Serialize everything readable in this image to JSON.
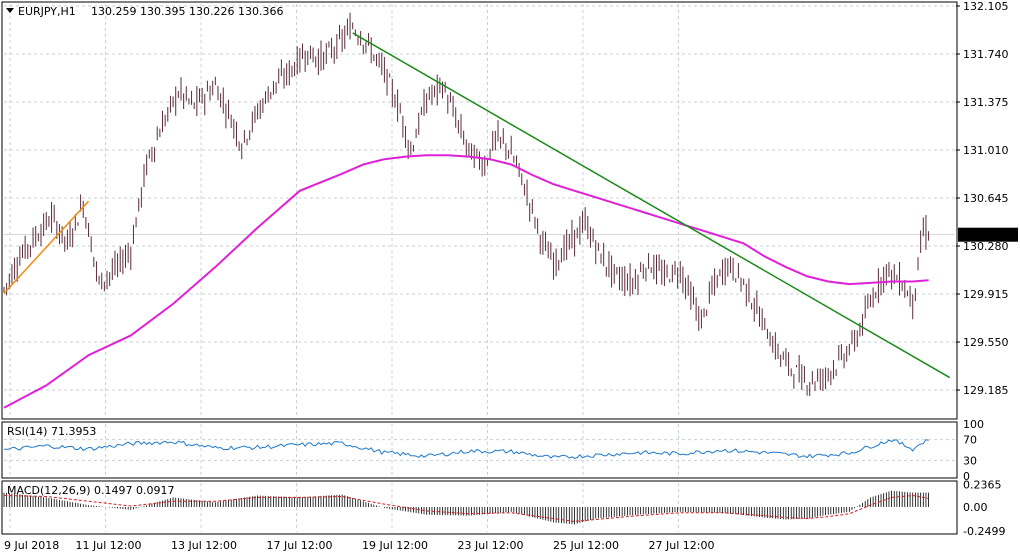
{
  "header": {
    "symbol": "EURJPY,H1",
    "ohlc": "130.259 130.395 130.226 130.366"
  },
  "colors": {
    "candles": "#5a2b3a",
    "ma_line": "#e020d8",
    "trend_down": "#1a8a1a",
    "trend_up": "#f08a10",
    "rsi": "#1e78c8",
    "macd_signal": "#d02020",
    "price_tag_bg": "#000000",
    "price_tag_fg": "#ffffff",
    "grid": "#c8d0d8"
  },
  "chart_data": [
    {
      "type": "candlestick",
      "title": "EURJPY,H1",
      "ylim": [
        128.98,
        132.12
      ],
      "ticks_y": [
        "132.105",
        "131.740",
        "131.375",
        "131.010",
        "130.645",
        "130.280",
        "129.915",
        "129.550",
        "129.185"
      ],
      "ticks_x": [
        "9 Jul 2018",
        "11 Jul 12:00",
        "13 Jul 12:00",
        "17 Jul 12:00",
        "19 Jul 12:00",
        "23 Jul 12:00",
        "25 Jul 12:00",
        "27 Jul 12:00"
      ],
      "current_price": "130.366",
      "price_path": [
        [
          0,
          129.95
        ],
        [
          3,
          130.2
        ],
        [
          6,
          130.35
        ],
        [
          9,
          130.5
        ],
        [
          12,
          130.3
        ],
        [
          15,
          130.6
        ],
        [
          18,
          130.0
        ],
        [
          21,
          130.1
        ],
        [
          24,
          130.25
        ],
        [
          27,
          130.9
        ],
        [
          30,
          131.2
        ],
        [
          33,
          131.45
        ],
        [
          36,
          131.35
        ],
        [
          40,
          131.5
        ],
        [
          43,
          131.25
        ],
        [
          45,
          131.05
        ],
        [
          48,
          131.3
        ],
        [
          51,
          131.5
        ],
        [
          54,
          131.6
        ],
        [
          57,
          131.75
        ],
        [
          60,
          131.7
        ],
        [
          63,
          131.8
        ],
        [
          66,
          131.95
        ],
        [
          69,
          131.8
        ],
        [
          72,
          131.6
        ],
        [
          75,
          131.3
        ],
        [
          77,
          131.0
        ],
        [
          80,
          131.4
        ],
        [
          83,
          131.5
        ],
        [
          86,
          131.2
        ],
        [
          88,
          131.0
        ],
        [
          91,
          130.9
        ],
        [
          93,
          131.1
        ],
        [
          95,
          131.05
        ],
        [
          97,
          130.9
        ],
        [
          100,
          130.55
        ],
        [
          102,
          130.3
        ],
        [
          104,
          130.15
        ],
        [
          107,
          130.3
        ],
        [
          110,
          130.45
        ],
        [
          113,
          130.2
        ],
        [
          116,
          130.05
        ],
        [
          119,
          130.0
        ],
        [
          122,
          130.15
        ],
        [
          125,
          130.05
        ],
        [
          128,
          130.1
        ],
        [
          130,
          129.9
        ],
        [
          132,
          129.7
        ],
        [
          134,
          129.95
        ],
        [
          137,
          130.15
        ],
        [
          140,
          130.0
        ],
        [
          143,
          129.75
        ],
        [
          146,
          129.5
        ],
        [
          149,
          129.35
        ],
        [
          152,
          129.25
        ],
        [
          155,
          129.28
        ],
        [
          158,
          129.4
        ],
        [
          161,
          129.55
        ],
        [
          163,
          129.75
        ],
        [
          165,
          129.95
        ],
        [
          167,
          130.1
        ],
        [
          170,
          130.0
        ],
        [
          172,
          129.85
        ],
        [
          174,
          130.4
        ],
        [
          175,
          130.37
        ]
      ],
      "series": [
        {
          "name": "",
          "x": [
            0,
            8,
            16,
            24,
            32,
            40,
            48,
            56,
            64,
            68,
            72,
            76,
            80,
            84,
            88,
            92,
            96,
            100,
            104,
            108,
            112,
            116,
            120,
            124,
            128,
            132,
            136,
            140,
            144,
            148,
            152,
            156,
            160,
            164,
            168,
            172,
            175
          ],
          "y": [
            129.05,
            129.22,
            129.45,
            129.6,
            129.84,
            130.12,
            130.42,
            130.7,
            130.83,
            130.9,
            130.94,
            130.96,
            130.97,
            130.97,
            130.96,
            130.94,
            130.9,
            130.82,
            130.75,
            130.7,
            130.65,
            130.6,
            130.55,
            130.5,
            130.45,
            130.4,
            130.35,
            130.3,
            130.2,
            130.12,
            130.05,
            130.01,
            129.99,
            130.0,
            130.01,
            130.01,
            130.02
          ]
        }
      ],
      "trendlines": [
        {
          "name": "",
          "x": [
            66,
            179
          ],
          "y": [
            131.9,
            129.28
          ]
        },
        {
          "name": "",
          "x": [
            0,
            16
          ],
          "y": [
            129.92,
            130.62
          ]
        }
      ],
      "xlim": [
        0,
        180
      ]
    },
    {
      "type": "line",
      "title": "RSI(14) 71.3953",
      "ylim": [
        0,
        100
      ],
      "ticks_y": [
        "100",
        "70",
        "30",
        "0"
      ],
      "series": [
        {
          "name": "RSI",
          "x": [
            0,
            8,
            16,
            24,
            32,
            40,
            48,
            56,
            64,
            72,
            80,
            88,
            96,
            104,
            112,
            120,
            128,
            136,
            144,
            152,
            160,
            168,
            172,
            175
          ],
          "y": [
            50,
            58,
            52,
            62,
            66,
            54,
            55,
            60,
            63,
            45,
            38,
            48,
            47,
            35,
            40,
            45,
            43,
            50,
            45,
            38,
            44,
            70,
            52,
            71.4
          ]
        }
      ]
    },
    {
      "type": "bar",
      "title": "MACD(12,26,9) 0.1497 0.0917",
      "ylim": [
        -0.26,
        0.25
      ],
      "ticks_y": [
        "0.2365",
        "0.00",
        "-0.2499"
      ],
      "series": [
        {
          "name": "MACD",
          "x": [
            0,
            8,
            16,
            24,
            32,
            40,
            48,
            56,
            64,
            72,
            80,
            88,
            96,
            104,
            108,
            112,
            120,
            128,
            136,
            144,
            148,
            152,
            156,
            160,
            164,
            168,
            172,
            175
          ],
          "y": [
            0.15,
            0.1,
            0.02,
            -0.03,
            0.1,
            0.05,
            0.12,
            0.1,
            0.13,
            -0.01,
            -0.08,
            -0.09,
            -0.05,
            -0.16,
            -0.18,
            -0.12,
            -0.08,
            -0.05,
            -0.06,
            -0.11,
            -0.13,
            -0.12,
            -0.08,
            -0.05,
            0.1,
            0.17,
            0.15,
            0.15
          ]
        },
        {
          "name": "Signal",
          "x": [
            0,
            8,
            16,
            24,
            32,
            40,
            48,
            56,
            64,
            72,
            80,
            88,
            96,
            104,
            108,
            112,
            120,
            128,
            136,
            144,
            148,
            152,
            156,
            160,
            164,
            168,
            172,
            175
          ],
          "y": [
            0.12,
            0.11,
            0.06,
            0.01,
            0.06,
            0.06,
            0.1,
            0.1,
            0.11,
            0.03,
            -0.04,
            -0.07,
            -0.06,
            -0.12,
            -0.15,
            -0.13,
            -0.09,
            -0.06,
            -0.06,
            -0.09,
            -0.11,
            -0.12,
            -0.1,
            -0.07,
            0.02,
            0.1,
            0.12,
            0.09
          ]
        }
      ]
    }
  ]
}
